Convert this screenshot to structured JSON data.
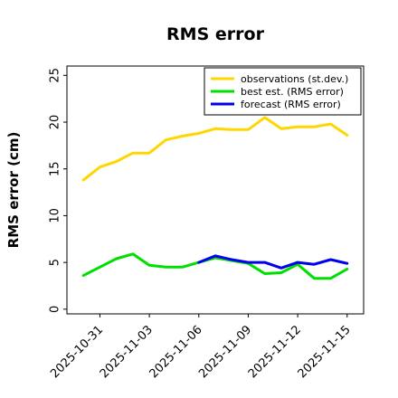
{
  "chart_data": {
    "type": "line",
    "title": "RMS error",
    "xlabel": "",
    "ylabel": "RMS error (cm)",
    "xlim": [
      "2025-10-29",
      "2025-11-16"
    ],
    "ylim": [
      -0.5,
      26
    ],
    "yticks": [
      0,
      5,
      10,
      15,
      20,
      25
    ],
    "xticks": [
      {
        "date": "2025-10-31",
        "label": "2025-10-31",
        "color": "#000000"
      },
      {
        "date": "2025-11-03",
        "label": "2025-11-03",
        "color": "#000000"
      },
      {
        "date": "2025-11-06",
        "label": "2025-11-06",
        "color": "#228B22"
      },
      {
        "date": "2025-11-09",
        "label": "2025-11-09",
        "color": "#000000"
      },
      {
        "date": "2025-11-12",
        "label": "2025-11-12",
        "color": "#000000"
      },
      {
        "date": "2025-11-15",
        "label": "2025-11-15",
        "color": "#000000"
      }
    ],
    "legend_position": "top-right",
    "grid": false,
    "series": [
      {
        "name": "observations (st.dev.)",
        "color": "#FFD700",
        "x": [
          "2025-10-30",
          "2025-10-31",
          "2025-11-01",
          "2025-11-02",
          "2025-11-03",
          "2025-11-04",
          "2025-11-05",
          "2025-11-06",
          "2025-11-07",
          "2025-11-08",
          "2025-11-09",
          "2025-11-10",
          "2025-11-11",
          "2025-11-12",
          "2025-11-13",
          "2025-11-14",
          "2025-11-15"
        ],
        "y": [
          13.8,
          15.2,
          15.8,
          16.7,
          16.7,
          18.1,
          18.5,
          18.8,
          19.3,
          19.2,
          19.2,
          20.5,
          19.3,
          19.5,
          19.5,
          19.8,
          18.6
        ]
      },
      {
        "name": "best est. (RMS error)",
        "color": "#00E000",
        "x": [
          "2025-10-30",
          "2025-10-31",
          "2025-11-01",
          "2025-11-02",
          "2025-11-03",
          "2025-11-04",
          "2025-11-05",
          "2025-11-06",
          "2025-11-07",
          "2025-11-08",
          "2025-11-09",
          "2025-11-10",
          "2025-11-11",
          "2025-11-12",
          "2025-11-13",
          "2025-11-14",
          "2025-11-15"
        ],
        "y": [
          3.6,
          4.5,
          5.4,
          5.9,
          4.7,
          4.5,
          4.5,
          5.0,
          5.5,
          5.2,
          4.9,
          3.8,
          3.9,
          4.8,
          3.3,
          3.3,
          4.3
        ]
      },
      {
        "name": "forecast (RMS error)",
        "color": "#0000EE",
        "x": [
          "2025-11-06",
          "2025-11-07",
          "2025-11-08",
          "2025-11-09",
          "2025-11-10",
          "2025-11-11",
          "2025-11-12",
          "2025-11-13",
          "2025-11-14",
          "2025-11-15"
        ],
        "y": [
          5.0,
          5.7,
          5.3,
          5.0,
          5.0,
          4.4,
          5.0,
          4.8,
          5.3,
          4.9
        ]
      }
    ]
  }
}
